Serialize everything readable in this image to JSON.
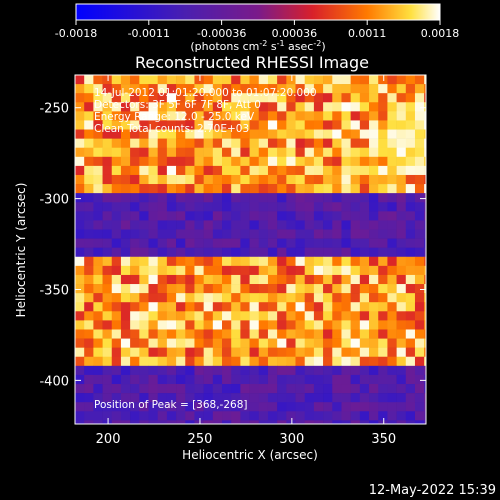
{
  "chart_data": {
    "type": "heatmap",
    "title": "Reconstructed RHESSI Image",
    "xlabel": "Heliocentric X (arcsec)",
    "ylabel": "Heliocentric Y (arcsec)",
    "xlim": [
      182,
      373
    ],
    "ylim": [
      -424,
      -232
    ],
    "x_ticks": [
      200,
      250,
      300,
      350
    ],
    "y_ticks": [
      -250,
      -300,
      -350,
      -400
    ],
    "colorbar": {
      "ticks": [
        "-0.0018",
        "-0.0011",
        "-0.00036",
        "0.00036",
        "0.0011",
        "0.0018"
      ],
      "units": "(photons cm",
      "units_sup1": "-2",
      "units_mid": " s",
      "units_sup2": "-1",
      "units_end": " asec",
      "units_sup3": "-2",
      "units_close": ")",
      "range": [
        -0.0018,
        0.0018
      ],
      "colormap": "blue-purple-red-orange-yellow-white"
    },
    "info_lines": [
      "14-Jul-2012 01:01:20.000 to 01:07:20.000",
      "Detectors: 3F 5F 6F 7F 8F, Att 0",
      "Energy Range: 12.0 - 25.0 keV",
      "Clean     Total counts: 2.70E+03"
    ],
    "peak_text": "Position of Peak = [368,-268]",
    "peak": [
      368,
      -268
    ],
    "bands": [
      {
        "y_range": [
          -295,
          -232
        ],
        "level": "high"
      },
      {
        "y_range": [
          -333,
          -295
        ],
        "level": "low"
      },
      {
        "y_range": [
          -394,
          -333
        ],
        "level": "high"
      },
      {
        "y_range": [
          -424,
          -394
        ],
        "level": "low"
      }
    ]
  },
  "timestamp": "12-May-2022 15:39",
  "colors": {
    "background": "#000000",
    "text": "#ffffff"
  }
}
